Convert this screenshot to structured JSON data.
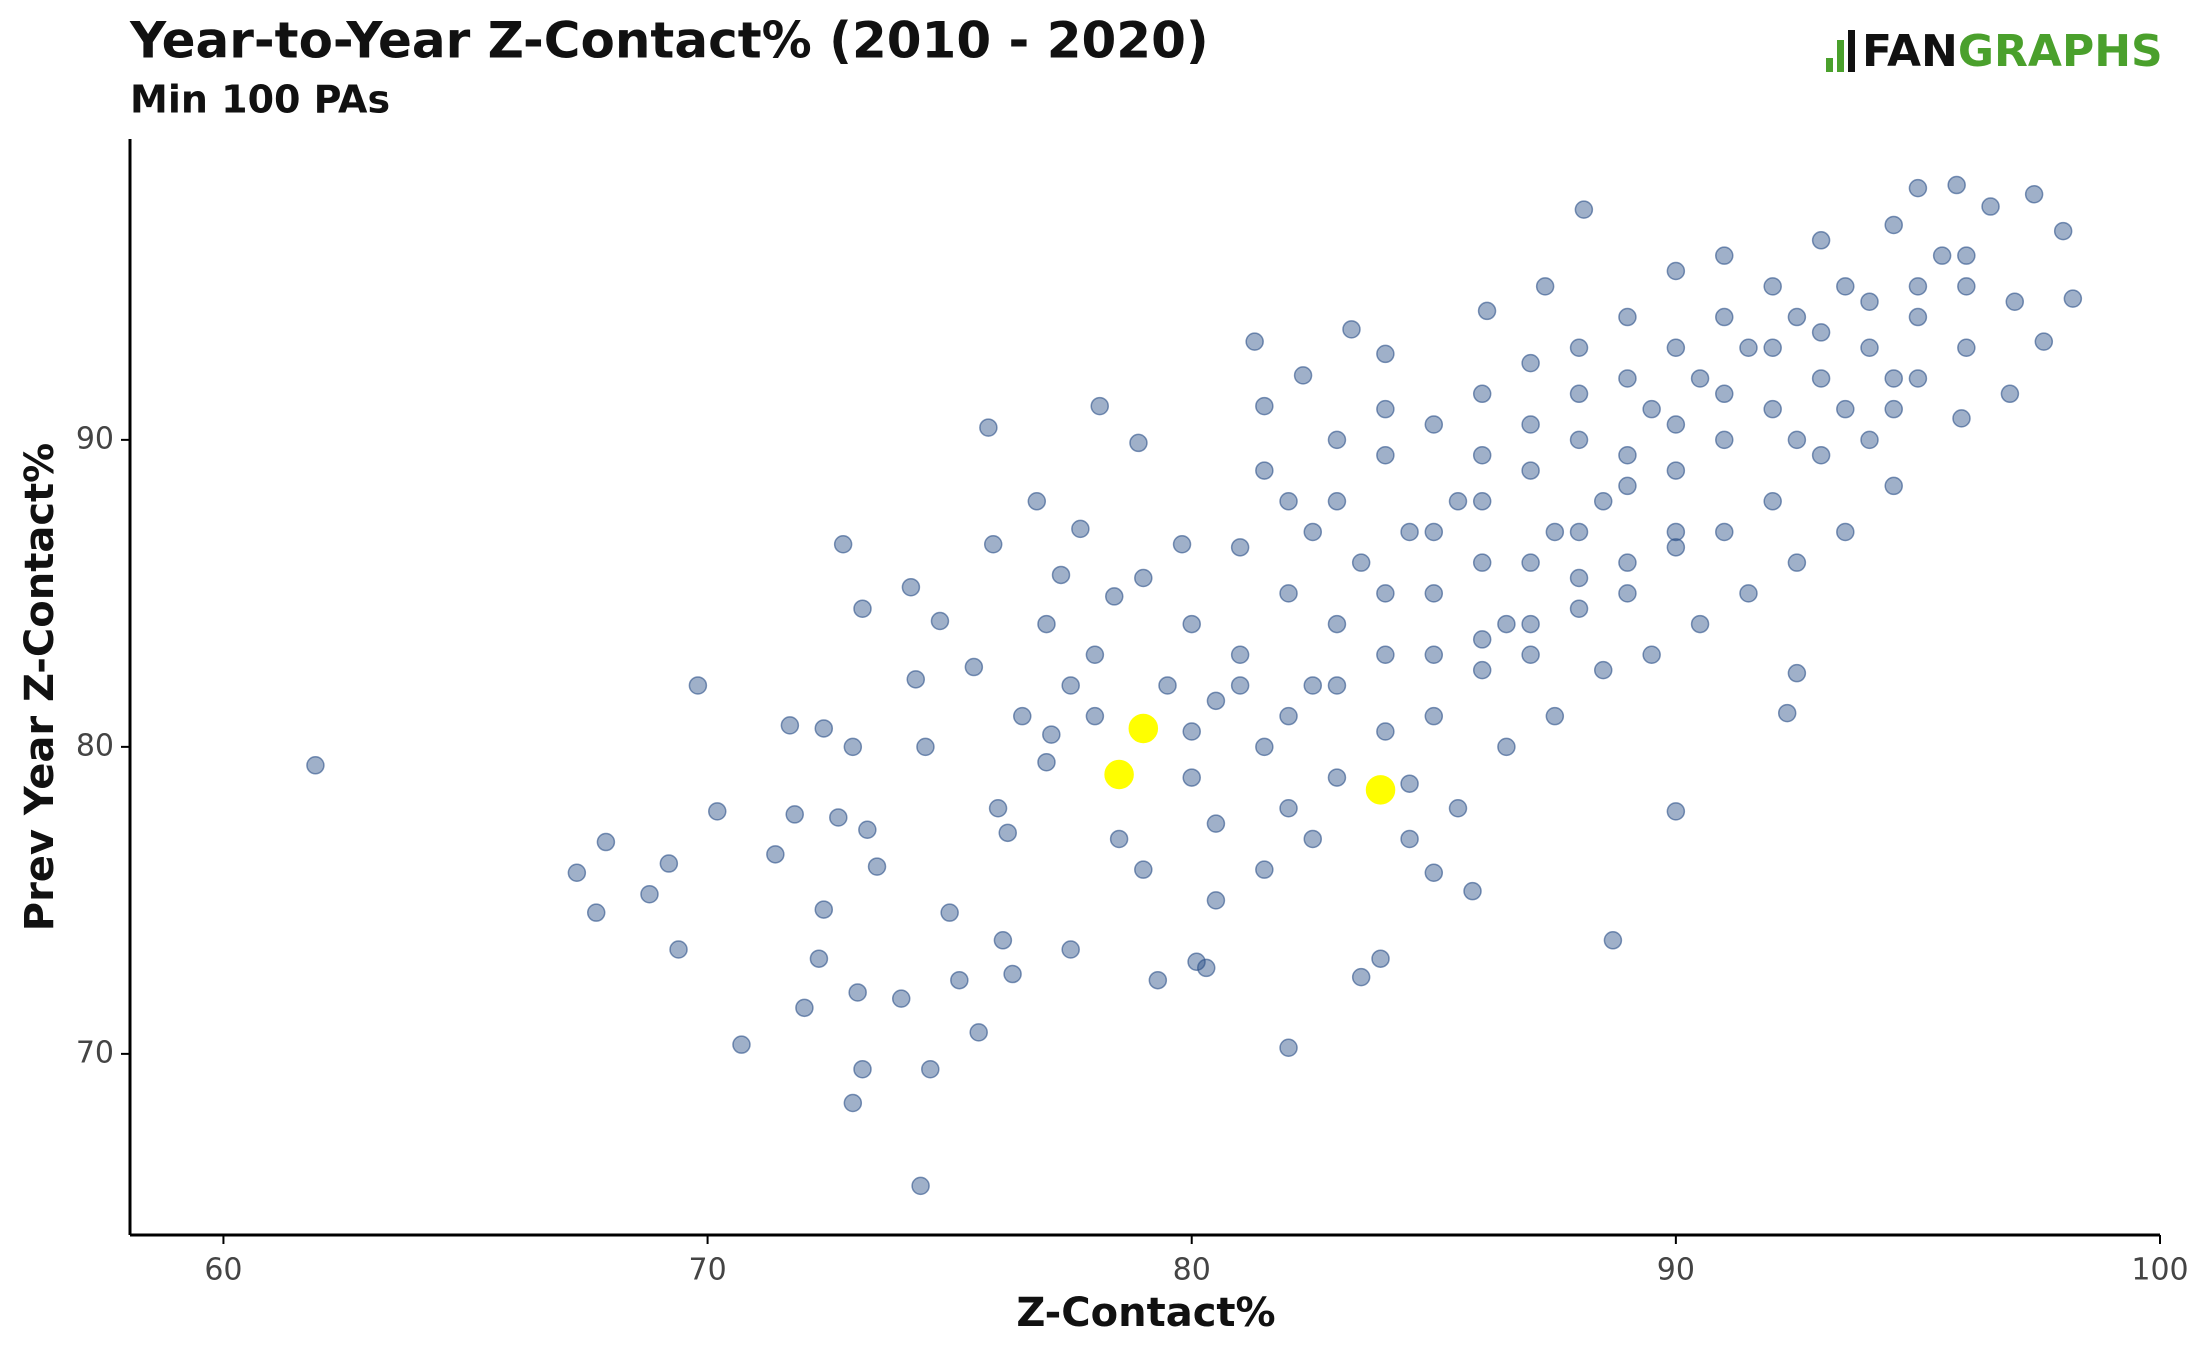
{
  "chart_data": {
    "type": "scatter",
    "title": "Year-to-Year Z-Contact% (2010 - 2020)",
    "subtitle": "Min 100 PAs",
    "logo": {
      "part1": "FAN",
      "part2": "GRAPHS"
    },
    "x_label": "Z-Contact%",
    "y_label": "Prev Year Z-Contact%",
    "xlim": [
      58.07,
      100
    ],
    "ylim": [
      64.1,
      99.8
    ],
    "xticks": [
      60,
      70,
      80,
      90,
      100
    ],
    "yticks": [
      70,
      80,
      90
    ],
    "grid": false,
    "series": [
      {
        "color": "#2b5088",
        "x": [
          61.9,
          67.3,
          67.7,
          67.9,
          68.8,
          69.2,
          69.4,
          69.8,
          70.2,
          70.7,
          71.4,
          71.7,
          71.8,
          72.0,
          72.4,
          72.4,
          72.3,
          72.7,
          72.8,
          73.0,
          73.0,
          73.1,
          73.2,
          73.2,
          73.3,
          73.5,
          74.0,
          74.2,
          74.3,
          74.4,
          74.6,
          74.8,
          74.5,
          75.0,
          75.2,
          75.5,
          75.6,
          75.8,
          75.9,
          76.2,
          76.1,
          76.3,
          76.8,
          77.1,
          77.3,
          77.5,
          77.7,
          78.1,
          78.4,
          78.9,
          79.3,
          79.8,
          80.1,
          80.3,
          80.5,
          81.3,
          81.5,
          82.0,
          82.3,
          83.3,
          83.5,
          83.9,
          84.0,
          84.5,
          85.0,
          85.8,
          86.1,
          87.3,
          88.1,
          88.7,
          90.0,
          92.3,
          92.5,
          95.0,
          95.8,
          96.5,
          97.4,
          98.0,
          98.2,
          97.6,
          96.9,
          95.9,
          80.5,
          81,
          81.5,
          82,
          82.5,
          83,
          83.5,
          84,
          84.5,
          85,
          85.5,
          86,
          86.5,
          87,
          87.5,
          88,
          88.5,
          89,
          89.5,
          90,
          90.5,
          91,
          91.5,
          92,
          92.5,
          93,
          93.5,
          94,
          94.5,
          95,
          95.5,
          96,
          84,
          85,
          86,
          87,
          88,
          89,
          90,
          91,
          92,
          93,
          94,
          95,
          83,
          84,
          85,
          86,
          87,
          88,
          89,
          90,
          91,
          82,
          83,
          80,
          79.5,
          78,
          77,
          76.5,
          76,
          78.5,
          79,
          80.5,
          81.5,
          82.5,
          84.5,
          85.5,
          86.5,
          87.5,
          88.5,
          89.5,
          90.5,
          91.5,
          92.5,
          93.5,
          94.5,
          80,
          81,
          82,
          83,
          84,
          79,
          78,
          77.5,
          77,
          81.5,
          82.5,
          86,
          87,
          88,
          89,
          90,
          91,
          92,
          93,
          94,
          95,
          96,
          92,
          93,
          94.5,
          96,
          97,
          90,
          89,
          88,
          87,
          86,
          85,
          84,
          83,
          82,
          81,
          80,
          85,
          86,
          87,
          88,
          89,
          90,
          91,
          92.5,
          93.5,
          94.5
        ],
        "values": [
          79.4,
          75.9,
          74.6,
          76.9,
          75.2,
          76.2,
          73.4,
          82.0,
          77.9,
          70.3,
          76.5,
          80.7,
          77.8,
          71.5,
          80.6,
          74.7,
          73.1,
          77.7,
          86.6,
          80.0,
          68.4,
          72.0,
          69.5,
          84.5,
          77.3,
          76.1,
          71.8,
          85.2,
          82.2,
          65.7,
          69.5,
          84.1,
          80.0,
          74.6,
          72.4,
          82.6,
          70.7,
          90.4,
          86.6,
          77.2,
          73.7,
          72.6,
          88.0,
          80.4,
          85.6,
          73.4,
          87.1,
          91.1,
          84.9,
          89.9,
          72.4,
          86.6,
          73.0,
          72.8,
          75.0,
          93.2,
          91.1,
          70.2,
          92.1,
          93.6,
          72.5,
          73.1,
          92.8,
          78.8,
          75.9,
          75.3,
          94.2,
          95.0,
          97.5,
          73.7,
          77.9,
          81.1,
          82.4,
          98.2,
          98.3,
          97.6,
          98.0,
          96.8,
          94.6,
          93.2,
          91.5,
          90.7,
          81.5,
          83,
          80,
          85,
          82,
          84,
          86,
          83,
          87,
          85,
          88,
          86,
          84,
          89,
          87,
          90,
          88,
          86,
          91,
          89,
          92,
          90,
          93,
          91,
          94,
          92,
          95,
          93,
          91,
          94,
          96,
          95,
          80.5,
          81,
          82.5,
          83,
          84.5,
          85,
          86.5,
          87,
          88,
          89.5,
          90,
          92,
          88,
          89.5,
          90.5,
          91.5,
          92.5,
          93,
          94,
          95.5,
          96,
          78,
          79,
          79,
          82,
          81,
          79.5,
          81,
          78,
          77,
          76,
          77.5,
          76,
          77,
          77,
          78,
          80,
          81,
          82.5,
          83,
          84,
          85,
          86,
          87,
          88.5,
          84,
          86.5,
          88,
          90,
          91,
          85.5,
          83,
          82,
          84,
          89,
          87,
          88,
          86,
          87,
          88.5,
          90.5,
          91.5,
          93,
          93.5,
          94.5,
          95,
          96,
          95,
          96.5,
          97,
          93,
          94.5,
          87,
          89.5,
          85.5,
          84,
          83.5,
          83,
          85,
          82,
          81,
          82,
          80.5,
          87,
          89.5,
          90.5,
          91.5,
          92,
          93,
          94,
          90,
          91,
          92
        ]
      },
      {
        "color": "#ffff00",
        "x": [
          78.5,
          79.0,
          83.9
        ],
        "values": [
          79.1,
          80.6,
          78.6
        ]
      }
    ]
  }
}
